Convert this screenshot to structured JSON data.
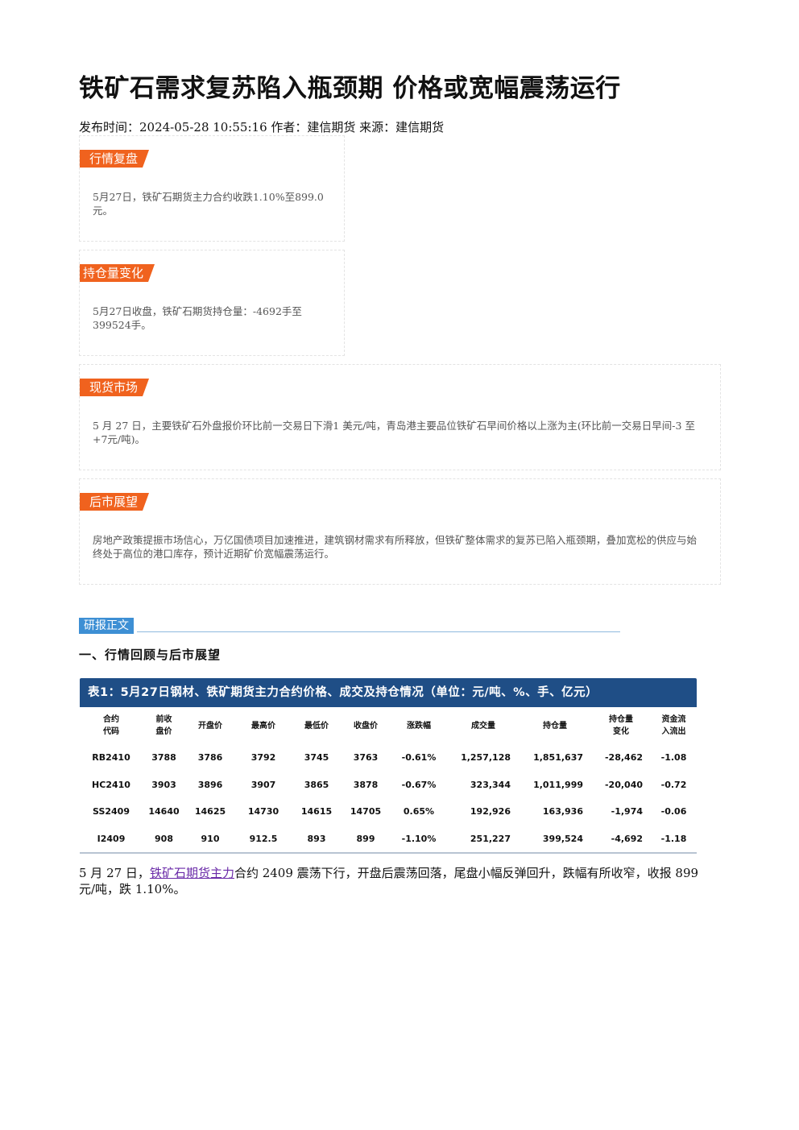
{
  "article": {
    "title": "铁矿石需求复苏陷入瓶颈期 价格或宽幅震荡运行",
    "meta": "发布时间：2024-05-28 10:55:16 作者：建信期货 来源：建信期货"
  },
  "panels": [
    {
      "tag": "行情复盘",
      "text": "5月27日，铁矿石期货主力合约收跌1.10%至899.0元。"
    },
    {
      "tag": "持仓量变化",
      "text": "5月27日收盘，铁矿石期货持仓量：-4692手至399524手。"
    },
    {
      "tag": "现货市场",
      "text": "5 月 27 日，主要铁矿石外盘报价环比前一交易日下滑1 美元/吨，青岛港主要品位铁矿石早间价格以上涨为主(环比前一交易日早间-3 至+7元/吨)。"
    },
    {
      "tag": "后市展望",
      "text": "房地产政策提振市场信心，万亿国债项目加速推进，建筑钢材需求有所释放，但铁矿整体需求的复苏已陷入瓶颈期，叠加宽松的供应与始终处于高位的港口库存，预计近期矿价宽幅震荡运行。"
    }
  ],
  "report": {
    "tag": "研报正文",
    "section_heading": "一、行情回顾与后市展望"
  },
  "table": {
    "caption": "表1：5月27日钢材、铁矿期货主力合约价格、成交及持仓情况（单位：元/吨、%、手、亿元）",
    "headers": [
      "合约\n代码",
      "前收\n盘价",
      "开盘价",
      "最高价",
      "最低价",
      "收盘价",
      "涨跌幅",
      "成交量",
      "持仓量",
      "持仓量\n变化",
      "资金流\n入流出"
    ],
    "rows": [
      [
        "RB2410",
        "3788",
        "3786",
        "3792",
        "3745",
        "3763",
        "-0.61%",
        "1,257,128",
        "1,851,637",
        "-28,462",
        "-1.08"
      ],
      [
        "HC2410",
        "3903",
        "3896",
        "3907",
        "3865",
        "3878",
        "-0.67%",
        "323,344",
        "1,011,999",
        "-20,040",
        "-0.72"
      ],
      [
        "SS2409",
        "14640",
        "14625",
        "14730",
        "14615",
        "14705",
        "0.65%",
        "192,926",
        "163,936",
        "-1,974",
        "-0.06"
      ],
      [
        "I2409",
        "908",
        "910",
        "912.5",
        "893",
        "899",
        "-1.10%",
        "251,227",
        "399,524",
        "-4,692",
        "-1.18"
      ]
    ]
  },
  "body": {
    "before_link": "5 月 27 日，",
    "link_text": "铁矿石期货主力",
    "after_link": "合约 2409 震荡下行，开盘后震荡回落，尾盘小幅反弹回升，跌幅有所收窄，收报 899 元/吨，跌 1.10%。"
  },
  "colors": {
    "tag_orange": "#f0621e",
    "report_blue": "#3d8fd4",
    "caption_navy": "#1f4e86",
    "down_green": "#1a9a45",
    "up_red": "#e0201e",
    "link_purple": "#6a2aa8"
  }
}
